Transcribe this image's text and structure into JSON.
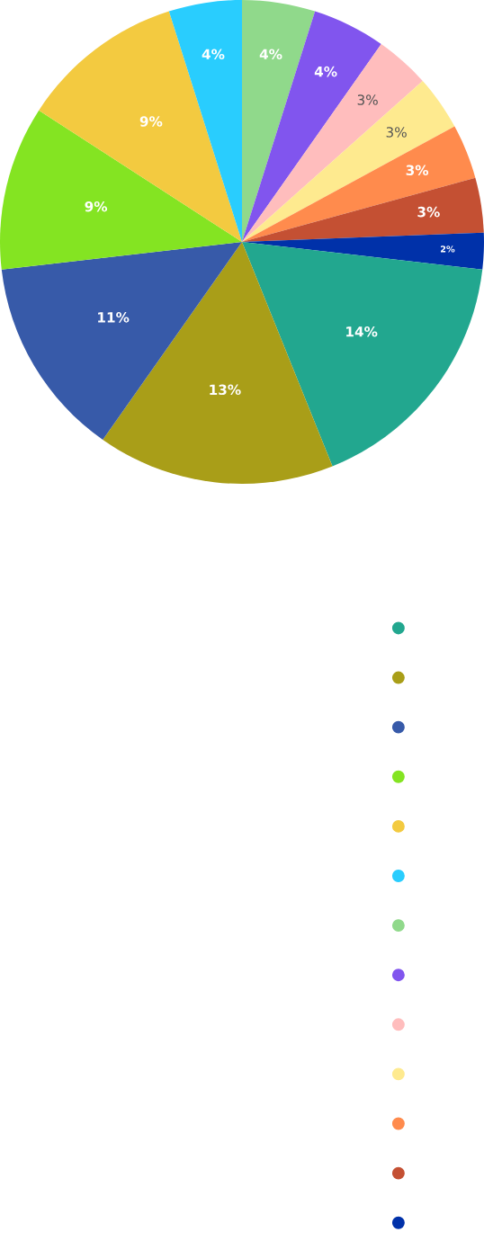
{
  "chart_data": {
    "type": "pie",
    "categories": [
      null,
      null,
      null,
      null,
      null,
      null,
      null,
      null,
      null,
      null,
      null,
      null,
      null
    ],
    "values": [
      14,
      13,
      11,
      9,
      9,
      4,
      4,
      4,
      3,
      3,
      3,
      3,
      2
    ],
    "value_labels": [
      "14%",
      "13%",
      "11%",
      "9%",
      "9%",
      "4%",
      "4%",
      "4%",
      "3%",
      "3%",
      "3%",
      "3%",
      "2%"
    ],
    "colors": [
      "#22a78f",
      "#a99e18",
      "#375aa9",
      "#84e422",
      "#f3ca40",
      "#29cdfe",
      "#90d98b",
      "#8155ee",
      "#ffbdbd",
      "#feea8f",
      "#ff8b4d",
      "#c45033",
      "#0031a9"
    ]
  }
}
